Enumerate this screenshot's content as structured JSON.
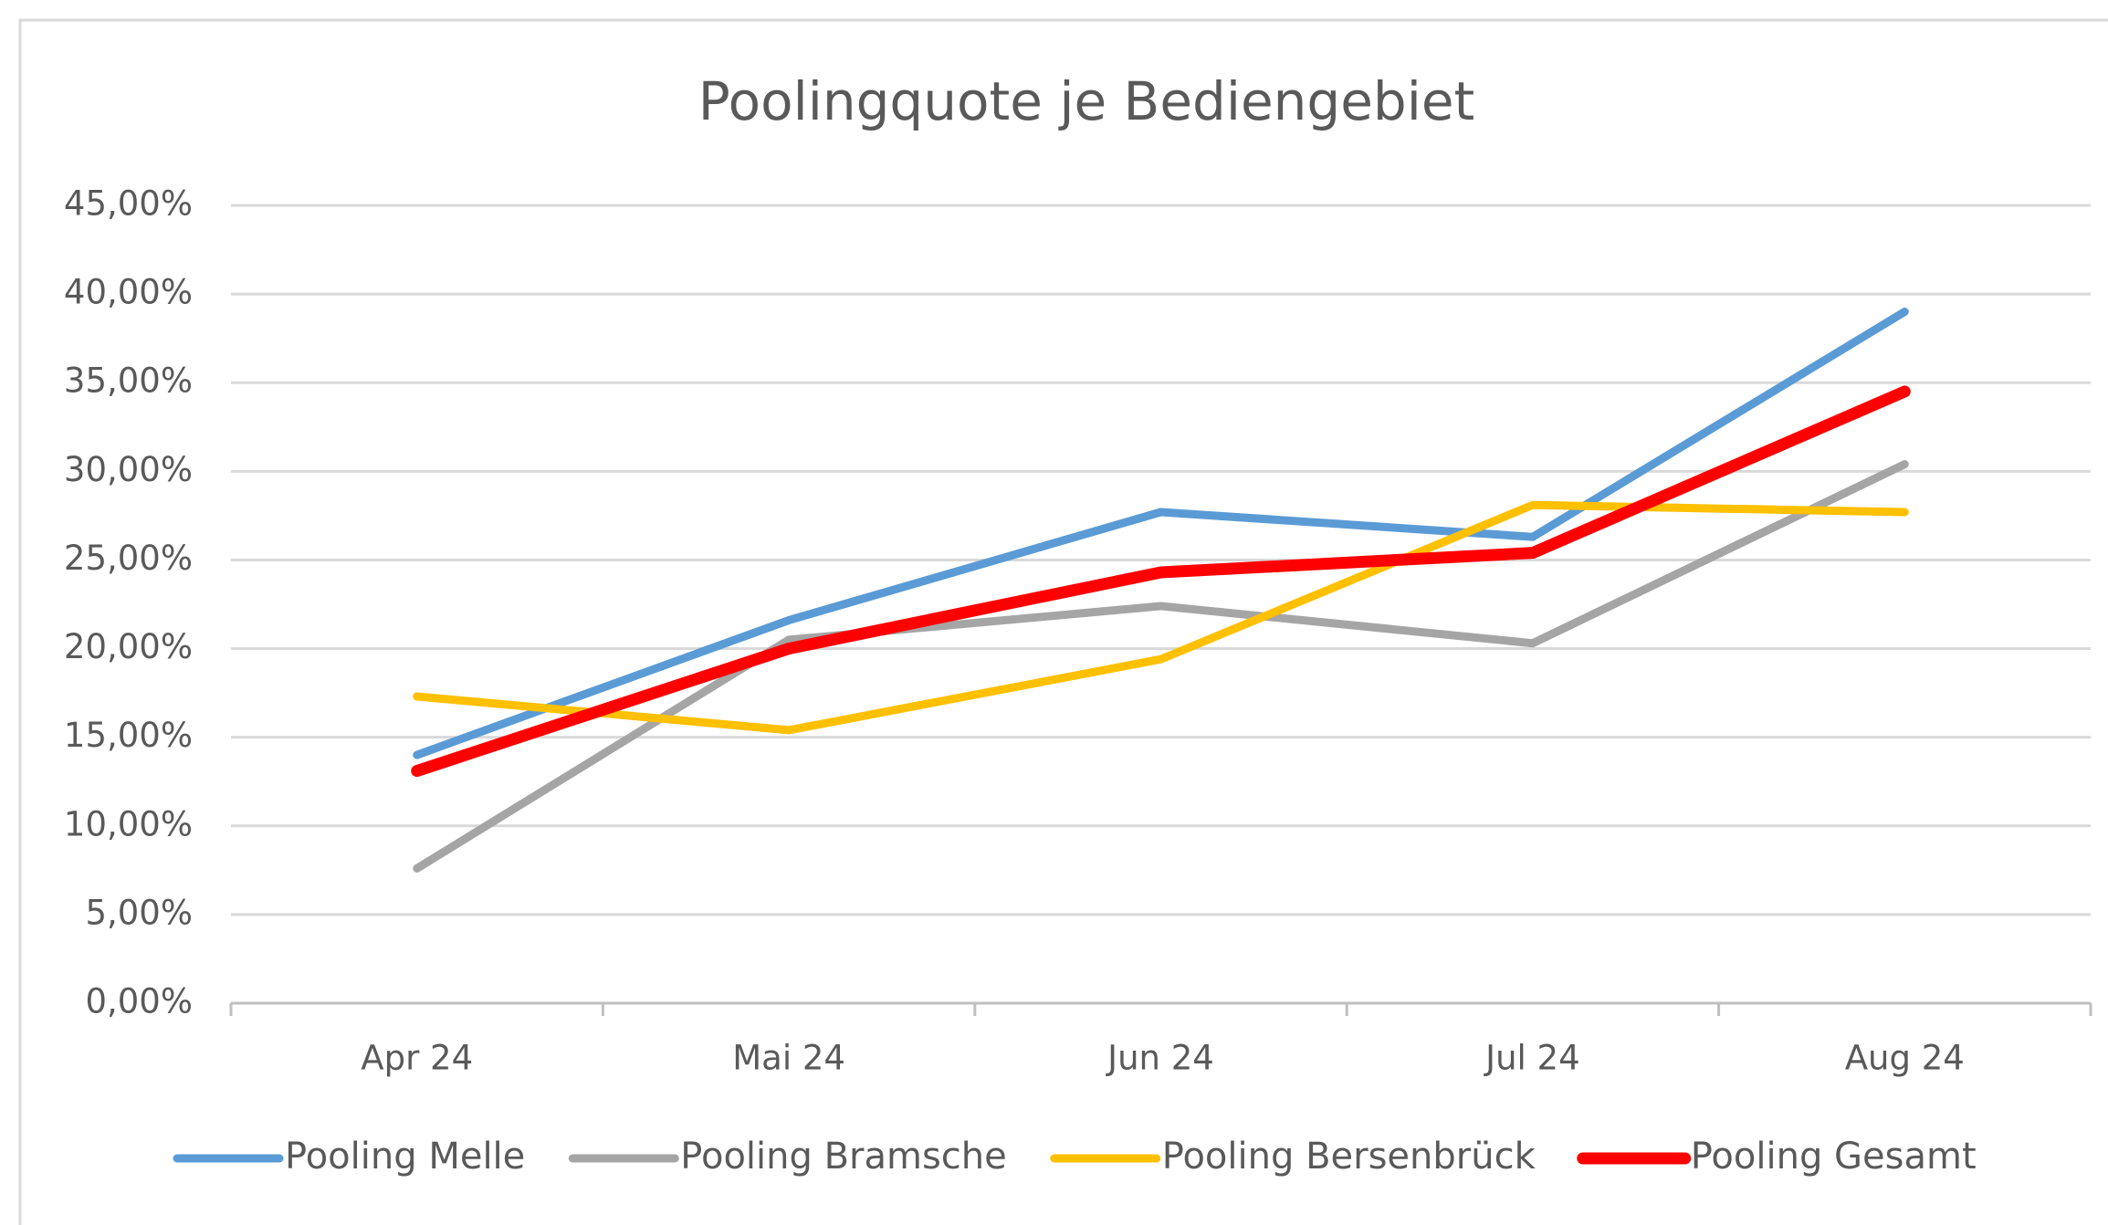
{
  "chart_data": {
    "type": "line",
    "title": "Poolingquote je Bediengebiet",
    "categories": [
      "Apr 24",
      "Mai 24",
      "Jun 24",
      "Jul 24",
      "Aug 24"
    ],
    "series": [
      {
        "name": "Pooling Melle",
        "color": "#5b9bd5",
        "values": [
          14.0,
          21.6,
          27.7,
          26.3,
          39.0
        ]
      },
      {
        "name": "Pooling Bramsche",
        "color": "#a5a5a5",
        "values": [
          7.6,
          20.5,
          22.4,
          20.3,
          30.4
        ]
      },
      {
        "name": "Pooling Bersenbrück",
        "color": "#ffc000",
        "values": [
          17.3,
          15.4,
          19.4,
          28.1,
          27.7
        ]
      },
      {
        "name": "Pooling Gesamt",
        "color": "#ff0000",
        "values": [
          13.1,
          20.0,
          24.3,
          25.4,
          34.5
        ]
      }
    ],
    "ylim": [
      0,
      45
    ],
    "yticks": [
      {
        "value": 0,
        "label": "0,00%"
      },
      {
        "value": 5,
        "label": "5,00%"
      },
      {
        "value": 10,
        "label": "10,00%"
      },
      {
        "value": 15,
        "label": "15,00%"
      },
      {
        "value": 20,
        "label": "20,00%"
      },
      {
        "value": 25,
        "label": "25,00%"
      },
      {
        "value": 30,
        "label": "30,00%"
      },
      {
        "value": 35,
        "label": "35,00%"
      },
      {
        "value": 40,
        "label": "40,00%"
      },
      {
        "value": 45,
        "label": "45,00%"
      }
    ],
    "grid": true,
    "legend": "bottom"
  }
}
